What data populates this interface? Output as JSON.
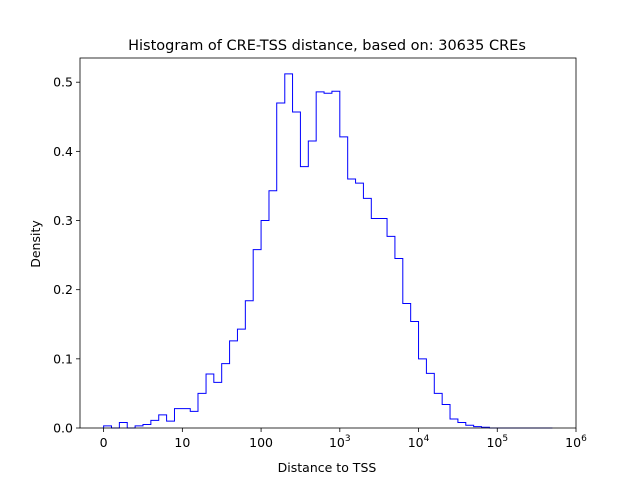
{
  "chart_data": {
    "type": "histogram-step",
    "title": "Histogram of CRE-TSS distance, based on: 30635 CREs",
    "xlabel": "Distance to TSS",
    "ylabel": "Density",
    "xscale": "symlog",
    "linthresh": 10,
    "xlim": [
      -3,
      1000000
    ],
    "ylim": [
      0,
      0.535
    ],
    "grid": false,
    "color": "#0000ff",
    "xticks": [
      {
        "value": 0,
        "base": "0",
        "exp": ""
      },
      {
        "value": 10,
        "base": "10",
        "exp": ""
      },
      {
        "value": 100,
        "base": "100",
        "exp": ""
      },
      {
        "value": 1000,
        "base": "10",
        "exp": "3"
      },
      {
        "value": 10000,
        "base": "10",
        "exp": "4"
      },
      {
        "value": 100000,
        "base": "10",
        "exp": "5"
      },
      {
        "value": 1000000,
        "base": "10",
        "exp": "6"
      }
    ],
    "yticks": [
      "0.0",
      "0.1",
      "0.2",
      "0.3",
      "0.4",
      "0.5"
    ],
    "bin_edges": [
      0,
      1,
      2,
      3,
      4,
      5,
      6,
      7,
      8,
      9,
      10,
      12.6,
      15.8,
      20,
      25.1,
      31.6,
      39.8,
      50.1,
      63.1,
      79.4,
      100,
      126,
      158,
      200,
      251,
      316,
      398,
      501,
      631,
      794,
      1000,
      1259,
      1585,
      1995,
      2512,
      3162,
      3981,
      5012,
      6310,
      7943,
      10000,
      12589,
      15849,
      19953,
      25119,
      31623,
      39811,
      50119,
      63096,
      79433,
      100000,
      125893,
      158489,
      199526,
      251189,
      316228,
      398107,
      501187
    ],
    "densities": [
      0.003,
      0.0,
      0.008,
      0.0,
      0.003,
      0.005,
      0.011,
      0.019,
      0.01,
      0.028,
      0.028,
      0.024,
      0.05,
      0.078,
      0.066,
      0.093,
      0.126,
      0.143,
      0.184,
      0.258,
      0.3,
      0.343,
      0.47,
      0.512,
      0.457,
      0.378,
      0.415,
      0.486,
      0.484,
      0.487,
      0.421,
      0.36,
      0.354,
      0.332,
      0.303,
      0.303,
      0.277,
      0.245,
      0.18,
      0.154,
      0.1,
      0.079,
      0.05,
      0.034,
      0.013,
      0.008,
      0.004,
      0.002,
      0.001,
      0.0,
      0.0,
      0.0,
      0.0,
      0.0,
      0.0,
      0.0,
      0.0
    ]
  }
}
